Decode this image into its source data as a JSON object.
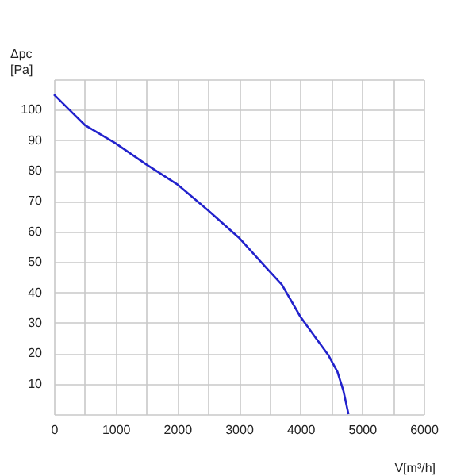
{
  "chart_data": {
    "type": "line",
    "xlabel": "V[m³/h]",
    "ylabel": "Δpc\n[Pa]",
    "x": [
      0,
      250,
      500,
      1000,
      1500,
      2000,
      2500,
      3000,
      3450,
      3700,
      4000,
      4250,
      4450,
      4600,
      4700,
      4780
    ],
    "series": [
      {
        "color": "#2222cc",
        "values": [
          105,
          100,
          95,
          89,
          82,
          75.5,
          67,
          58,
          48,
          42.5,
          32,
          25,
          19.5,
          14,
          7.5,
          0
        ]
      }
    ],
    "xlim": [
      0,
      6000
    ],
    "ylim": [
      0,
      110
    ],
    "xticks": [
      0,
      {
        "value": 500,
        "label": null
      },
      1000,
      {
        "value": 1500,
        "label": null
      },
      2000,
      {
        "value": 2500,
        "label": null
      },
      3000,
      {
        "value": 3500,
        "label": null
      },
      4000,
      {
        "value": 4500,
        "label": null
      },
      5000,
      {
        "value": 5500,
        "label": null
      },
      6000
    ],
    "yticks": [
      {
        "value": 0,
        "label": null
      },
      10,
      20,
      30,
      40,
      50,
      60,
      70,
      80,
      90,
      100,
      {
        "value": 110,
        "label": null
      }
    ],
    "grid": true,
    "marker": "none",
    "line_style": "solid"
  }
}
